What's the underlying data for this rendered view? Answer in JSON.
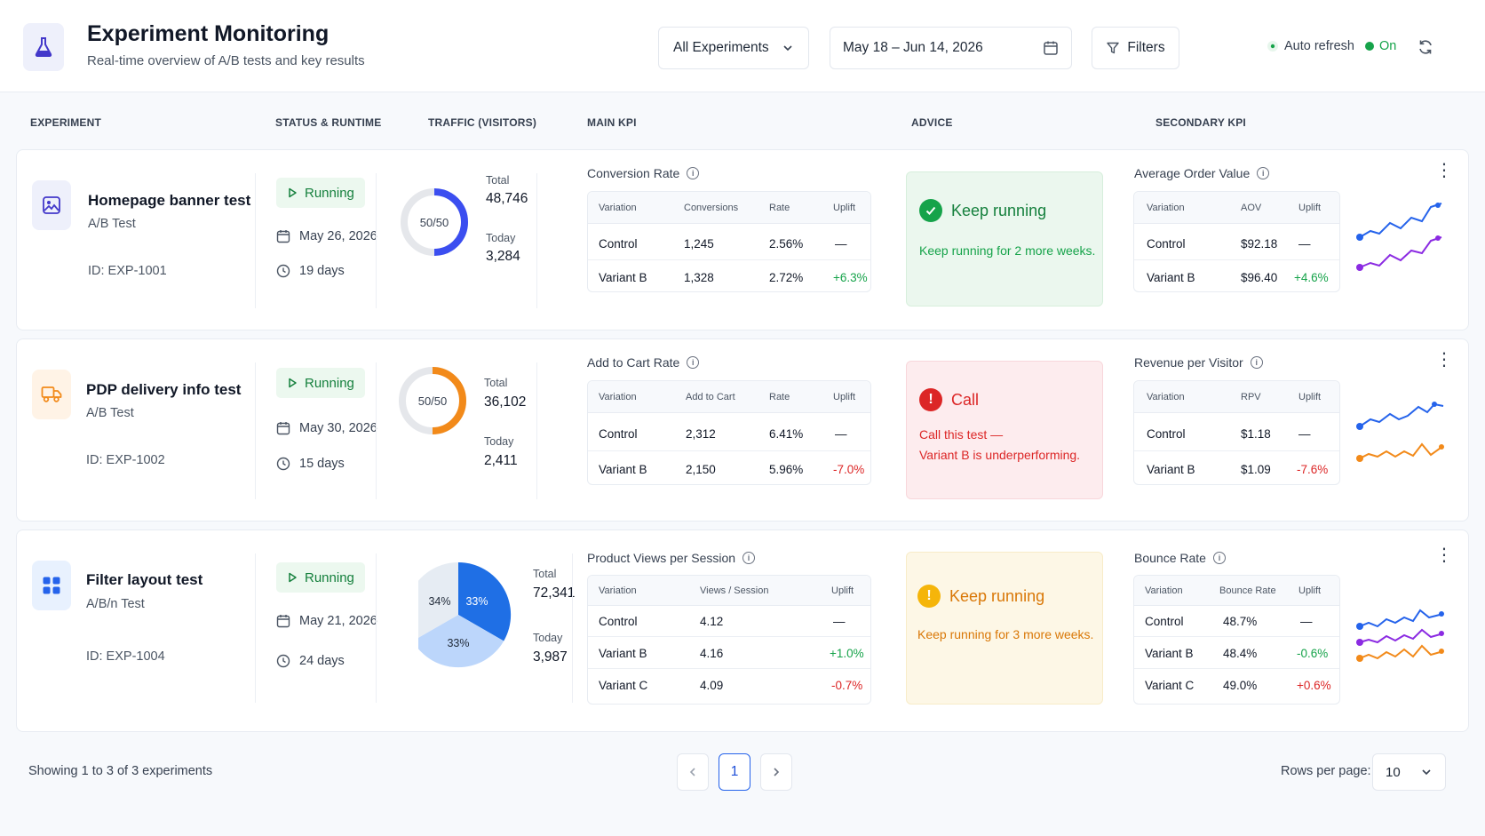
{
  "header": {
    "title": "Experiment Monitoring",
    "subtitle": "Real-time overview of A/B tests and key results",
    "experiment_filter": "All Experiments",
    "date_range": "May 18 – Jun 14, 2026",
    "filters_label": "Filters",
    "auto_refresh_label": "Auto refresh",
    "auto_refresh_state": "On"
  },
  "columns": [
    "EXPERIMENT",
    "STATUS & RUNTIME",
    "TRAFFIC (VISITORS)",
    "MAIN KPI",
    "ADVICE",
    "SECONDARY KPI"
  ],
  "traffic_labels": {
    "total": "Total",
    "today": "Today"
  },
  "experiments": [
    {
      "name": "Homepage banner test",
      "type": "A/B Test",
      "id": "ID: EXP-1001",
      "status": "Running",
      "start_date": "May 26, 2026",
      "runtime": "19 days",
      "split_label": "50/50",
      "total": "48,746",
      "today": "3,284",
      "main_kpi": {
        "title": "Conversion Rate",
        "headers": [
          "Variation",
          "Conversions",
          "Rate",
          "Uplift"
        ],
        "rows": [
          [
            "Control",
            "1,245",
            "2.56%",
            "—"
          ],
          [
            "Variant B",
            "1,328",
            "2.72%",
            "+6.3%"
          ]
        ]
      },
      "advice": {
        "title": "Keep running",
        "line1": "Keep running for 2 more weeks.",
        "line2": ""
      },
      "secondary_kpi": {
        "title": "Average Order Value",
        "headers": [
          "Variation",
          "AOV",
          "Uplift"
        ],
        "rows": [
          [
            "Control",
            "$92.18",
            "—"
          ],
          [
            "Variant B",
            "$96.40",
            "+4.6%"
          ]
        ]
      }
    },
    {
      "name": "PDP delivery info test",
      "type": "A/B Test",
      "id": "ID: EXP-1002",
      "status": "Running",
      "start_date": "May 30, 2026",
      "runtime": "15 days",
      "split_label": "50/50",
      "total": "36,102",
      "today": "2,411",
      "main_kpi": {
        "title": "Add to Cart Rate",
        "headers": [
          "Variation",
          "Add to Cart",
          "Rate",
          "Uplift"
        ],
        "rows": [
          [
            "Control",
            "2,312",
            "6.41%",
            "—"
          ],
          [
            "Variant B",
            "2,150",
            "5.96%",
            "-7.0%"
          ]
        ]
      },
      "advice": {
        "title": "Call",
        "line1": "Call this test —",
        "line2": "Variant B is underperforming."
      },
      "secondary_kpi": {
        "title": "Revenue per Visitor",
        "headers": [
          "Variation",
          "RPV",
          "Uplift"
        ],
        "rows": [
          [
            "Control",
            "$1.18",
            "—"
          ],
          [
            "Variant B",
            "$1.09",
            "-7.6%"
          ]
        ]
      }
    },
    {
      "name": "Filter layout test",
      "type": "A/B/n Test",
      "id": "ID: EXP-1004",
      "status": "Running",
      "start_date": "May 21, 2026",
      "runtime": "24 days",
      "split": [
        "34%",
        "33%",
        "33%"
      ],
      "total": "72,341",
      "today": "3,987",
      "main_kpi": {
        "title": "Product Views per Session",
        "headers": [
          "Variation",
          "Views / Session",
          "Uplift"
        ],
        "rows": [
          [
            "Control",
            "4.12",
            "—"
          ],
          [
            "Variant B",
            "4.16",
            "+1.0%"
          ],
          [
            "Variant C",
            "4.09",
            "-0.7%"
          ]
        ]
      },
      "advice": {
        "title": "Keep running",
        "line1": "Keep running for 3 more weeks.",
        "line2": ""
      },
      "secondary_kpi": {
        "title": "Bounce Rate",
        "headers": [
          "Variation",
          "Bounce Rate",
          "Uplift"
        ],
        "rows": [
          [
            "Control",
            "48.7%",
            "—"
          ],
          [
            "Variant B",
            "48.4%",
            "-0.6%"
          ],
          [
            "Variant C",
            "49.0%",
            "+0.6%"
          ]
        ]
      }
    }
  ],
  "footer": {
    "showing": "Showing 1 to 3 of 3 experiments",
    "current_page": "1",
    "rows_per_page_label": "Rows per page:",
    "rows_per_page": "10"
  },
  "colors": {
    "accent": "#2563eb",
    "green": "#16a34a",
    "red": "#dc2626",
    "amber": "#d97706",
    "orange": "#f28a1a",
    "purple": "#8b2be2"
  },
  "icons": [
    "flask-icon",
    "chevron-down-icon",
    "calendar-icon",
    "filter-icon",
    "refresh-icon",
    "image-icon",
    "truck-icon",
    "grid-icon",
    "play-icon",
    "clock-icon",
    "info-icon",
    "check-icon",
    "alert-icon",
    "kebab-icon"
  ]
}
